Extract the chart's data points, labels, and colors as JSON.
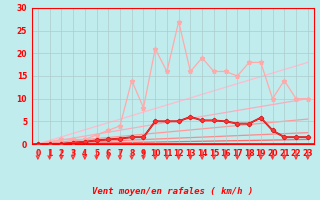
{
  "bg_color": "#c0ecee",
  "grid_color": "#b0cccc",
  "xlabel": "Vent moyen/en rafales ( km/h )",
  "xlim": [
    -0.5,
    23.5
  ],
  "ylim": [
    0,
    30
  ],
  "xticks": [
    0,
    1,
    2,
    3,
    4,
    5,
    6,
    7,
    8,
    9,
    10,
    11,
    12,
    13,
    14,
    15,
    16,
    17,
    18,
    19,
    20,
    21,
    22,
    23
  ],
  "yticks": [
    0,
    5,
    10,
    15,
    20,
    25,
    30
  ],
  "straight_lines": [
    {
      "end_y": 18.0,
      "color": "#ffbbcc",
      "lw": 0.9
    },
    {
      "end_y": 10.0,
      "color": "#ffaabb",
      "lw": 0.9
    },
    {
      "end_y": 5.5,
      "color": "#ff9999",
      "lw": 0.9
    },
    {
      "end_y": 2.5,
      "color": "#ff8888",
      "lw": 0.9
    },
    {
      "end_y": 1.0,
      "color": "#ff6666",
      "lw": 0.9
    }
  ],
  "series_light_x": [
    0,
    1,
    2,
    3,
    4,
    5,
    6,
    7,
    8,
    9,
    10,
    11,
    12,
    13,
    14,
    15,
    16,
    17,
    18,
    19,
    20,
    21,
    22,
    23
  ],
  "series_light_y": [
    0,
    0.5,
    1,
    1,
    1,
    2,
    3,
    4,
    14,
    8,
    21,
    16,
    27,
    16,
    19,
    16,
    16,
    15,
    18,
    18,
    10,
    14,
    10,
    10
  ],
  "series_light_color": "#ffaaaa",
  "series_light_marker": "*",
  "series_dark_x": [
    0,
    1,
    2,
    3,
    4,
    5,
    6,
    7,
    8,
    9,
    10,
    11,
    12,
    13,
    14,
    15,
    16,
    17,
    18,
    19,
    20,
    21,
    22,
    23
  ],
  "series_dark_y": [
    0,
    0,
    0,
    0.3,
    0.5,
    0.8,
    1.0,
    1.2,
    1.5,
    1.5,
    5.0,
    5.0,
    5.0,
    6.0,
    5.2,
    5.2,
    5.0,
    4.5,
    4.5,
    5.8,
    3.0,
    1.5,
    1.5,
    1.5
  ],
  "series_dark_color": "#cc0000",
  "series_dark2_color": "#ff3333",
  "tick_color": "#ff0000",
  "spine_color": "#ff0000",
  "arrow_color": "#ff3333",
  "label_color": "#ff0000",
  "tick_fontsize": 5.5,
  "label_fontsize": 6.5
}
